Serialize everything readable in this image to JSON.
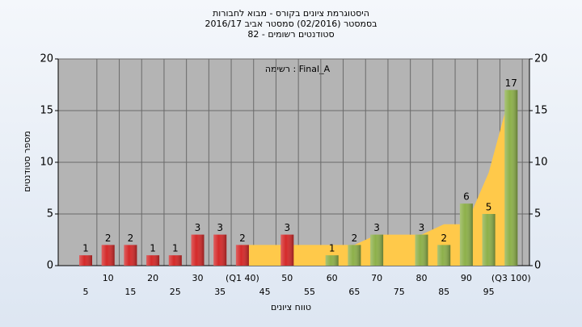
{
  "chart_data": {
    "type": "bar",
    "title": [
      "היסטוגרמת ציונים בקורס - מבוא לחבורות",
      "בסמסטר (02/2016) סמסטר אביב 2016/17",
      "סטודנטים רשומים - 82"
    ],
    "annotation": "רשימה : Final_A",
    "y_label": "מספר סטודנטים",
    "x_label": "טווח ציונים",
    "categories": [
      "5",
      "10",
      "15",
      "20",
      "25",
      "30",
      "35",
      "(Q1 40)",
      "45",
      "50",
      "55",
      "60",
      "65",
      "70",
      "75",
      "80",
      "85",
      "90",
      "95",
      "(Q3 100)"
    ],
    "series": [
      {
        "values": [
          1,
          2,
          2,
          1,
          1,
          3,
          3,
          2,
          0,
          3,
          0,
          1,
          2,
          3,
          0,
          3,
          2,
          6,
          5,
          17
        ],
        "colors": [
          "#d42a2a",
          "#d42a2a",
          "#d42a2a",
          "#d42a2a",
          "#d42a2a",
          "#d42a2a",
          "#d42a2a",
          "#d42a2a",
          "#d42a2a",
          "#d42a2a",
          "#8db04a",
          "#8db04a",
          "#8db04a",
          "#8db04a",
          "#8db04a",
          "#8db04a",
          "#8db04a",
          "#8db04a",
          "#8db04a",
          "#8db04a"
        ]
      },
      {
        "type": "area",
        "color": "#ffc94a",
        "values": [
          null,
          null,
          null,
          null,
          null,
          null,
          null,
          2,
          2,
          2,
          2,
          2,
          2,
          3,
          3,
          3,
          4,
          4,
          9,
          17
        ]
      }
    ],
    "ylim": [
      0,
      20
    ],
    "yticks": [
      0,
      5,
      10,
      15,
      20
    ],
    "y2lim": [
      0,
      20
    ],
    "y2ticks": [
      0,
      5,
      10,
      15,
      20
    ],
    "grid": true
  }
}
